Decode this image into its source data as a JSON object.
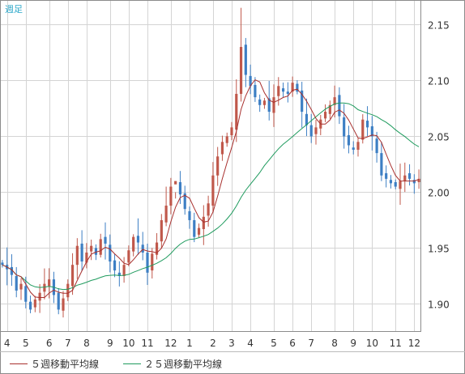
{
  "chart_data": {
    "type": "candlestick",
    "period_label": "週足",
    "y_ticks": [
      2.15,
      2.1,
      2.05,
      2.0,
      1.95,
      1.9
    ],
    "y_tick_labels": [
      "2.15",
      "2.10",
      "2.05",
      "2.00",
      "1.95",
      "1.90"
    ],
    "ylim": [
      1.875,
      2.172
    ],
    "x_tick_labels": [
      "4",
      "5",
      "6",
      "7",
      "8",
      "9",
      "10",
      "11",
      "12",
      "1",
      "2",
      "3",
      "4",
      "5",
      "6",
      "7",
      "8",
      "9",
      "10",
      "11",
      "12"
    ],
    "grid": true,
    "colors": {
      "up": "#c0584b",
      "down": "#3d7fc4",
      "ma5": "#a8302e",
      "ma25": "#1f9b5e",
      "grid": "#d4d4d4",
      "border": "#8c8c8c"
    },
    "legend": [
      {
        "label": "５週移動平均線",
        "color": "#a8302e"
      },
      {
        "label": "２５週移動平均線",
        "color": "#1f9b5e"
      }
    ],
    "closes": [
      1.935,
      1.931,
      1.926,
      1.912,
      1.918,
      1.902,
      1.895,
      1.904,
      1.91,
      1.918,
      1.922,
      1.908,
      1.895,
      1.905,
      1.918,
      1.935,
      1.952,
      1.938,
      1.946,
      1.952,
      1.944,
      1.958,
      1.954,
      1.938,
      1.93,
      1.925,
      1.935,
      1.948,
      1.96,
      1.955,
      1.946,
      1.928,
      1.945,
      1.955,
      1.975,
      1.988,
      2.005,
      2.01,
      1.998,
      1.985,
      1.975,
      1.96,
      1.968,
      1.978,
      1.99,
      2.015,
      2.032,
      2.045,
      2.05,
      2.058,
      2.088,
      2.13,
      2.105,
      2.095,
      2.085,
      2.078,
      2.082,
      2.072,
      2.085,
      2.095,
      2.09,
      2.088,
      2.098,
      2.09,
      2.072,
      2.06,
      2.05,
      2.058,
      2.065,
      2.072,
      2.078,
      2.085,
      2.068,
      2.05,
      2.042,
      2.038,
      2.045,
      2.065,
      2.058,
      2.05,
      2.035,
      2.015,
      2.012,
      2.008,
      2.005,
      2.01,
      2.015,
      2.012,
      2.008,
      2.012
    ]
  }
}
